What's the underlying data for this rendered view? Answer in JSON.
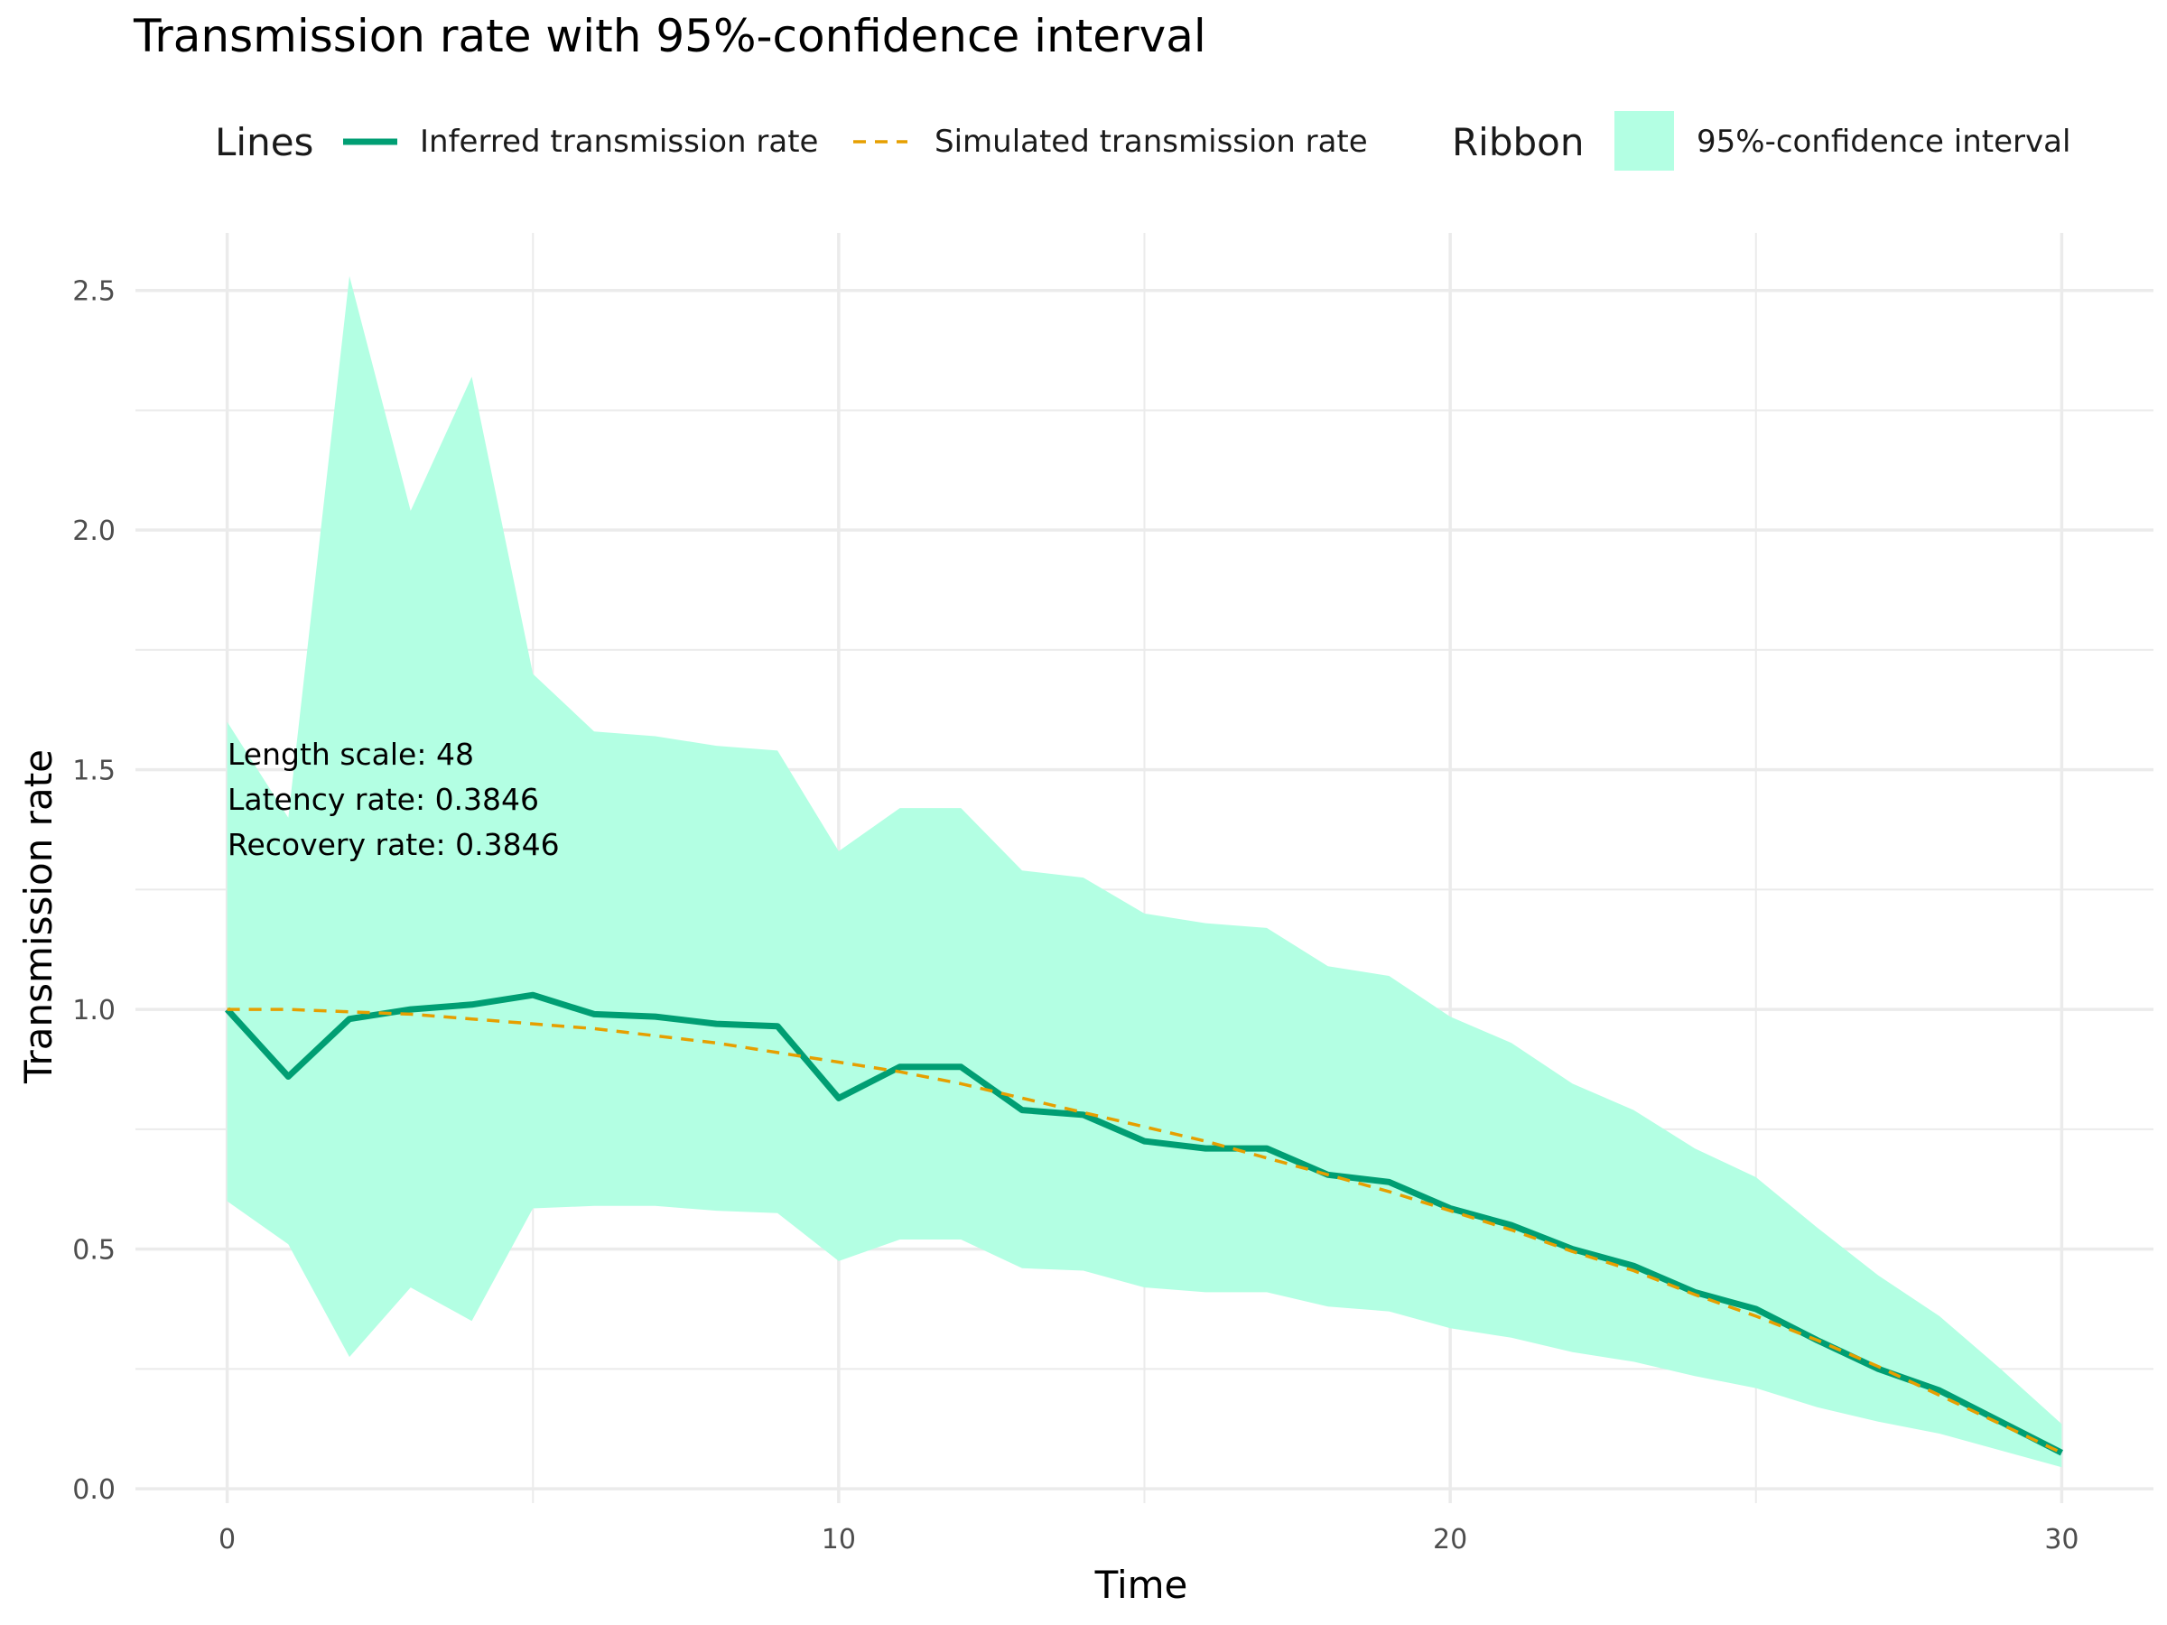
{
  "chart_data": {
    "type": "line",
    "title": "Transmission rate with 95%-confidence interval",
    "xlabel": "Time",
    "ylabel": "Transmission rate",
    "xlim": [
      -1.5,
      31.5
    ],
    "ylim": [
      -0.03,
      2.62
    ],
    "x_ticks": [
      0,
      10,
      20,
      30
    ],
    "x_tick_labels": [
      "0",
      "10",
      "20",
      "30"
    ],
    "y_ticks": [
      0.0,
      0.5,
      1.0,
      1.5,
      2.0,
      2.5
    ],
    "y_tick_labels": [
      "0.0",
      "0.5",
      "1.0",
      "1.5",
      "2.0",
      "2.5"
    ],
    "grid": true,
    "legend_position": "top",
    "legend": {
      "lines_title": "Lines",
      "ribbon_title": "Ribbon",
      "inferred_label": "Inferred transmission rate",
      "simulated_label": "Simulated transmission rate",
      "ribbon_label": "95%-confidence interval"
    },
    "annotations": [
      "Length scale: 48",
      "Latency rate: 0.3846",
      "Recovery rate: 0.3846"
    ],
    "colors": {
      "inferred": "#009E73",
      "simulated": "#E69F00",
      "ribbon": "#B3FFE3",
      "grid": "#EBEBEB"
    },
    "x": [
      0,
      1,
      2,
      3,
      4,
      5,
      6,
      7,
      8,
      9,
      10,
      11,
      12,
      13,
      14,
      15,
      16,
      17,
      18,
      19,
      20,
      21,
      22,
      23,
      24,
      25,
      26,
      27,
      28,
      29,
      30
    ],
    "series": [
      {
        "name": "Inferred transmission rate",
        "style": "solid",
        "values": [
          1.0,
          0.86,
          0.98,
          1.0,
          1.01,
          1.03,
          0.99,
          0.985,
          0.97,
          0.965,
          0.815,
          0.88,
          0.88,
          0.79,
          0.78,
          0.725,
          0.71,
          0.71,
          0.655,
          0.64,
          0.585,
          0.55,
          0.5,
          0.465,
          0.41,
          0.375,
          0.31,
          0.25,
          0.205,
          0.14,
          0.075
        ]
      },
      {
        "name": "Simulated transmission rate",
        "style": "dashed",
        "values": [
          1.0,
          1.0,
          0.995,
          0.99,
          0.98,
          0.97,
          0.96,
          0.945,
          0.93,
          0.91,
          0.89,
          0.87,
          0.845,
          0.815,
          0.785,
          0.755,
          0.725,
          0.69,
          0.655,
          0.62,
          0.58,
          0.54,
          0.495,
          0.455,
          0.405,
          0.36,
          0.31,
          0.255,
          0.195,
          0.135,
          0.075
        ]
      }
    ],
    "ribbon": {
      "name": "95%-confidence interval",
      "lower": [
        0.6,
        0.51,
        0.275,
        0.42,
        0.35,
        0.585,
        0.59,
        0.59,
        0.58,
        0.575,
        0.475,
        0.52,
        0.52,
        0.46,
        0.455,
        0.42,
        0.41,
        0.41,
        0.38,
        0.37,
        0.335,
        0.315,
        0.285,
        0.265,
        0.235,
        0.21,
        0.17,
        0.14,
        0.115,
        0.08,
        0.045
      ],
      "upper": [
        1.6,
        1.4,
        2.53,
        2.04,
        2.32,
        1.7,
        1.58,
        1.57,
        1.55,
        1.54,
        1.33,
        1.42,
        1.42,
        1.29,
        1.275,
        1.2,
        1.18,
        1.17,
        1.09,
        1.07,
        0.985,
        0.93,
        0.845,
        0.79,
        0.71,
        0.65,
        0.545,
        0.445,
        0.36,
        0.25,
        0.135
      ]
    }
  }
}
